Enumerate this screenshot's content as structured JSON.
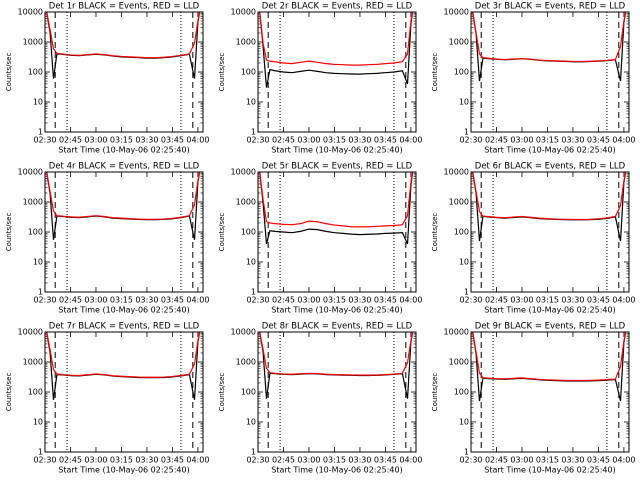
{
  "chart_data": [
    {
      "type": "line",
      "title": "Det 1r BLACK = Events, RED = LLD",
      "xlabel": "Start Time (10-May-06 02:25:40)",
      "ylabel": "Counts/sec",
      "log_y": true,
      "x": [
        "02:31",
        "02:33",
        "02:35",
        "02:37",
        "02:40",
        "02:45",
        "02:50",
        "02:55",
        "03:00",
        "03:05",
        "03:10",
        "03:15",
        "03:20",
        "03:25",
        "03:30",
        "03:35",
        "03:40",
        "03:45",
        "03:50",
        "03:55",
        "03:58",
        "04:00",
        "04:01"
      ],
      "xlim": [
        "02:30",
        "04:03"
      ],
      "xticks": [
        "02:30",
        "02:45",
        "03:00",
        "03:15",
        "03:30",
        "03:45",
        "04:00"
      ],
      "ylim": [
        1,
        10000
      ],
      "yticks": [
        1,
        10,
        100,
        1000,
        10000
      ],
      "dashed_lines": [
        "02:36",
        "03:57"
      ],
      "dotted_lines": [
        "02:43",
        "03:50"
      ],
      "series": [
        {
          "name": "BLACK",
          "color": "#000000",
          "values": [
            10000,
            2000,
            60,
            400,
            390,
            360,
            350,
            370,
            390,
            370,
            340,
            320,
            310,
            300,
            290,
            290,
            300,
            320,
            350,
            390,
            60,
            4500,
            10000
          ]
        },
        {
          "name": "RED",
          "color": "#ff0000",
          "values": [
            10000,
            2500,
            600,
            420,
            400,
            370,
            360,
            380,
            400,
            380,
            350,
            330,
            320,
            310,
            300,
            300,
            310,
            330,
            360,
            400,
            900,
            5000,
            10000
          ]
        }
      ]
    },
    {
      "type": "line",
      "title": "Det 2r BLACK = Events, RED = LLD",
      "xlabel": "Start Time (10-May-06 02:25:40)",
      "ylabel": "Counts/sec",
      "log_y": true,
      "x": [
        "02:31",
        "02:33",
        "02:35",
        "02:37",
        "02:40",
        "02:45",
        "02:50",
        "02:55",
        "03:00",
        "03:05",
        "03:10",
        "03:15",
        "03:20",
        "03:25",
        "03:30",
        "03:35",
        "03:40",
        "03:45",
        "03:50",
        "03:55",
        "03:58",
        "04:00",
        "04:01"
      ],
      "xlim": [
        "02:30",
        "04:03"
      ],
      "xticks": [
        "02:30",
        "02:45",
        "03:00",
        "03:15",
        "03:30",
        "03:45",
        "04:00"
      ],
      "ylim": [
        1,
        10000
      ],
      "yticks": [
        1,
        10,
        100,
        1000,
        10000
      ],
      "dashed_lines": [
        "02:36",
        "03:57"
      ],
      "dotted_lines": [
        "02:43",
        "03:50"
      ],
      "series": [
        {
          "name": "BLACK",
          "color": "#000000",
          "values": [
            10000,
            700,
            30,
            120,
            110,
            100,
            95,
            105,
            115,
            105,
            95,
            90,
            88,
            86,
            85,
            88,
            90,
            95,
            100,
            110,
            40,
            4000,
            10000
          ]
        },
        {
          "name": "RED",
          "color": "#ff0000",
          "values": [
            10000,
            900,
            250,
            230,
            220,
            200,
            190,
            210,
            230,
            210,
            190,
            180,
            175,
            170,
            170,
            175,
            180,
            190,
            200,
            220,
            400,
            5000,
            10000
          ]
        }
      ]
    },
    {
      "type": "line",
      "title": "Det 3r BLACK = Events, RED = LLD",
      "xlabel": "Start Time (10-May-06 02:25:40)",
      "ylabel": "Counts/sec",
      "log_y": true,
      "x": [
        "02:31",
        "02:33",
        "02:35",
        "02:37",
        "02:40",
        "02:45",
        "02:50",
        "02:55",
        "03:00",
        "03:05",
        "03:10",
        "03:15",
        "03:20",
        "03:25",
        "03:30",
        "03:35",
        "03:40",
        "03:45",
        "03:50",
        "03:55",
        "03:58",
        "04:00",
        "04:01"
      ],
      "xlim": [
        "02:30",
        "04:03"
      ],
      "xticks": [
        "02:30",
        "02:45",
        "03:00",
        "03:15",
        "03:30",
        "03:45",
        "04:00"
      ],
      "ylim": [
        1,
        10000
      ],
      "yticks": [
        1,
        10,
        100,
        1000,
        10000
      ],
      "dashed_lines": [
        "02:36",
        "03:57"
      ],
      "dotted_lines": [
        "02:43",
        "03:50"
      ],
      "series": [
        {
          "name": "BLACK",
          "color": "#000000",
          "values": [
            10000,
            1800,
            50,
            290,
            280,
            265,
            255,
            265,
            275,
            265,
            245,
            235,
            230,
            225,
            220,
            220,
            224,
            230,
            240,
            255,
            50,
            4500,
            10000
          ]
        },
        {
          "name": "RED",
          "color": "#ff0000",
          "values": [
            10000,
            2000,
            400,
            300,
            290,
            270,
            260,
            270,
            280,
            270,
            250,
            240,
            235,
            230,
            225,
            225,
            228,
            235,
            245,
            260,
            700,
            5000,
            10000
          ]
        }
      ]
    },
    {
      "type": "line",
      "title": "Det 4r BLACK = Events, RED = LLD",
      "xlabel": "Start Time (10-May-06 02:25:40)",
      "ylabel": "Counts/sec",
      "log_y": true,
      "x": [
        "02:31",
        "02:33",
        "02:35",
        "02:37",
        "02:40",
        "02:45",
        "02:50",
        "02:55",
        "03:00",
        "03:05",
        "03:10",
        "03:15",
        "03:20",
        "03:25",
        "03:30",
        "03:35",
        "03:40",
        "03:45",
        "03:50",
        "03:55",
        "03:58",
        "04:00",
        "04:01"
      ],
      "xlim": [
        "02:30",
        "04:03"
      ],
      "xticks": [
        "02:30",
        "02:45",
        "03:00",
        "03:15",
        "03:30",
        "03:45",
        "04:00"
      ],
      "ylim": [
        1,
        10000
      ],
      "yticks": [
        1,
        10,
        100,
        1000,
        10000
      ],
      "dashed_lines": [
        "02:36",
        "03:57"
      ],
      "dotted_lines": [
        "02:43",
        "03:50"
      ],
      "series": [
        {
          "name": "BLACK",
          "color": "#000000",
          "values": [
            10000,
            1900,
            55,
            340,
            330,
            310,
            300,
            320,
            340,
            320,
            290,
            280,
            270,
            262,
            258,
            258,
            262,
            275,
            300,
            340,
            55,
            4500,
            10000
          ]
        },
        {
          "name": "RED",
          "color": "#ff0000",
          "values": [
            10000,
            2200,
            500,
            350,
            340,
            320,
            310,
            330,
            350,
            330,
            300,
            290,
            280,
            270,
            265,
            265,
            270,
            285,
            310,
            350,
            800,
            5000,
            10000
          ]
        }
      ]
    },
    {
      "type": "line",
      "title": "Det 5r BLACK = Events, RED = LLD",
      "xlabel": "Start Time (10-May-06 02:25:40)",
      "ylabel": "Counts/sec",
      "log_y": true,
      "x": [
        "02:31",
        "02:33",
        "02:35",
        "02:37",
        "02:40",
        "02:45",
        "02:50",
        "02:55",
        "03:00",
        "03:05",
        "03:10",
        "03:15",
        "03:20",
        "03:25",
        "03:30",
        "03:35",
        "03:40",
        "03:45",
        "03:50",
        "03:55",
        "03:58",
        "04:00",
        "04:01"
      ],
      "xlim": [
        "02:30",
        "04:03"
      ],
      "xticks": [
        "02:30",
        "02:45",
        "03:00",
        "03:15",
        "03:30",
        "03:45",
        "04:00"
      ],
      "ylim": [
        1,
        10000
      ],
      "yticks": [
        1,
        10,
        100,
        1000,
        10000
      ],
      "dashed_lines": [
        "02:36",
        "03:57"
      ],
      "dotted_lines": [
        "02:43",
        "03:50"
      ],
      "series": [
        {
          "name": "BLACK",
          "color": "#000000",
          "values": [
            10000,
            900,
            40,
            110,
            105,
            100,
            95,
            105,
            125,
            120,
            105,
            95,
            90,
            85,
            82,
            84,
            86,
            90,
            92,
            95,
            40,
            3500,
            10000
          ]
        },
        {
          "name": "RED",
          "color": "#ff0000",
          "values": [
            10000,
            1200,
            220,
            200,
            190,
            180,
            175,
            190,
            230,
            220,
            190,
            170,
            160,
            150,
            148,
            150,
            155,
            160,
            165,
            175,
            350,
            4500,
            10000
          ]
        }
      ]
    },
    {
      "type": "line",
      "title": "Det 6r BLACK = Events, RED = LLD",
      "xlabel": "Start Time (10-May-06 02:25:40)",
      "ylabel": "Counts/sec",
      "log_y": true,
      "x": [
        "02:31",
        "02:33",
        "02:35",
        "02:37",
        "02:40",
        "02:45",
        "02:50",
        "02:55",
        "03:00",
        "03:05",
        "03:10",
        "03:15",
        "03:20",
        "03:25",
        "03:30",
        "03:35",
        "03:40",
        "03:45",
        "03:50",
        "03:55",
        "03:58",
        "04:00",
        "04:01"
      ],
      "xlim": [
        "02:30",
        "04:03"
      ],
      "xticks": [
        "02:30",
        "02:45",
        "03:00",
        "03:15",
        "03:30",
        "03:45",
        "04:00"
      ],
      "ylim": [
        1,
        10000
      ],
      "yticks": [
        1,
        10,
        100,
        1000,
        10000
      ],
      "dashed_lines": [
        "02:36",
        "03:57"
      ],
      "dotted_lines": [
        "02:43",
        "03:50"
      ],
      "series": [
        {
          "name": "BLACK",
          "color": "#000000",
          "values": [
            10000,
            1900,
            50,
            330,
            320,
            300,
            290,
            305,
            320,
            300,
            280,
            270,
            262,
            258,
            255,
            255,
            258,
            265,
            285,
            320,
            50,
            4500,
            10000
          ]
        },
        {
          "name": "RED",
          "color": "#ff0000",
          "values": [
            10000,
            2200,
            480,
            340,
            330,
            310,
            300,
            315,
            330,
            310,
            290,
            280,
            270,
            265,
            262,
            262,
            265,
            275,
            295,
            330,
            750,
            5000,
            10000
          ]
        }
      ]
    },
    {
      "type": "line",
      "title": "Det 7r BLACK = Events, RED = LLD",
      "xlabel": "Start Time (10-May-06 02:25:40)",
      "ylabel": "Counts/sec",
      "log_y": true,
      "x": [
        "02:31",
        "02:33",
        "02:35",
        "02:37",
        "02:40",
        "02:45",
        "02:50",
        "02:55",
        "03:00",
        "03:05",
        "03:10",
        "03:15",
        "03:20",
        "03:25",
        "03:30",
        "03:35",
        "03:40",
        "03:45",
        "03:50",
        "03:55",
        "03:58",
        "04:00",
        "04:01"
      ],
      "xlim": [
        "02:30",
        "04:03"
      ],
      "xticks": [
        "02:30",
        "02:45",
        "03:00",
        "03:15",
        "03:30",
        "03:45",
        "04:00"
      ],
      "ylim": [
        1,
        10000
      ],
      "yticks": [
        1,
        10,
        100,
        1000,
        10000
      ],
      "dashed_lines": [
        "02:36",
        "03:57"
      ],
      "dotted_lines": [
        "02:43",
        "03:50"
      ],
      "series": [
        {
          "name": "BLACK",
          "color": "#000000",
          "values": [
            10000,
            2000,
            55,
            380,
            370,
            350,
            345,
            365,
            390,
            370,
            340,
            325,
            315,
            305,
            300,
            300,
            305,
            320,
            345,
            380,
            55,
            4500,
            10000
          ]
        },
        {
          "name": "RED",
          "color": "#ff0000",
          "values": [
            10000,
            2500,
            560,
            400,
            380,
            360,
            355,
            375,
            400,
            380,
            350,
            335,
            325,
            315,
            310,
            310,
            315,
            330,
            355,
            390,
            850,
            5000,
            10000
          ]
        }
      ]
    },
    {
      "type": "line",
      "title": "Det 8r BLACK = Events, RED = LLD",
      "xlabel": "Start Time (10-May-06 02:25:40)",
      "ylabel": "Counts/sec",
      "log_y": true,
      "x": [
        "02:31",
        "02:33",
        "02:35",
        "02:37",
        "02:40",
        "02:45",
        "02:50",
        "02:55",
        "03:00",
        "03:05",
        "03:10",
        "03:15",
        "03:20",
        "03:25",
        "03:30",
        "03:35",
        "03:40",
        "03:45",
        "03:50",
        "03:55",
        "03:58",
        "04:00",
        "04:01"
      ],
      "xlim": [
        "02:30",
        "04:03"
      ],
      "xticks": [
        "02:30",
        "02:45",
        "03:00",
        "03:15",
        "03:30",
        "03:45",
        "04:00"
      ],
      "ylim": [
        1,
        10000
      ],
      "yticks": [
        1,
        10,
        100,
        1000,
        10000
      ],
      "dashed_lines": [
        "02:36",
        "03:57"
      ],
      "dotted_lines": [
        "02:43",
        "03:50"
      ],
      "series": [
        {
          "name": "BLACK",
          "color": "#000000",
          "values": [
            10000,
            2100,
            60,
            420,
            410,
            390,
            380,
            395,
            410,
            400,
            380,
            370,
            365,
            360,
            355,
            355,
            360,
            370,
            385,
            410,
            60,
            4600,
            10000
          ]
        },
        {
          "name": "RED",
          "color": "#ff0000",
          "values": [
            10000,
            2600,
            620,
            440,
            420,
            400,
            390,
            405,
            420,
            410,
            390,
            380,
            375,
            370,
            365,
            365,
            370,
            380,
            395,
            420,
            950,
            5000,
            10000
          ]
        }
      ]
    },
    {
      "type": "line",
      "title": "Det 9r BLACK = Events, RED = LLD",
      "xlabel": "Start Time (10-May-06 02:25:40)",
      "ylabel": "Counts/sec",
      "log_y": true,
      "x": [
        "02:31",
        "02:33",
        "02:35",
        "02:37",
        "02:40",
        "02:45",
        "02:50",
        "02:55",
        "03:00",
        "03:05",
        "03:10",
        "03:15",
        "03:20",
        "03:25",
        "03:30",
        "03:35",
        "03:40",
        "03:45",
        "03:50",
        "03:55",
        "03:58",
        "04:00",
        "04:01"
      ],
      "xlim": [
        "02:30",
        "04:03"
      ],
      "xticks": [
        "02:30",
        "02:45",
        "03:00",
        "03:15",
        "03:30",
        "03:45",
        "04:00"
      ],
      "ylim": [
        1,
        10000
      ],
      "yticks": [
        1,
        10,
        100,
        1000,
        10000
      ],
      "dashed_lines": [
        "02:36",
        "03:57"
      ],
      "dotted_lines": [
        "02:43",
        "03:50"
      ],
      "series": [
        {
          "name": "BLACK",
          "color": "#000000",
          "values": [
            10000,
            1800,
            50,
            290,
            280,
            270,
            265,
            275,
            285,
            270,
            255,
            245,
            240,
            235,
            232,
            232,
            235,
            240,
            248,
            260,
            50,
            4400,
            10000
          ]
        },
        {
          "name": "RED",
          "color": "#ff0000",
          "values": [
            10000,
            2100,
            420,
            300,
            290,
            280,
            275,
            285,
            295,
            280,
            265,
            255,
            250,
            245,
            242,
            242,
            245,
            250,
            258,
            270,
            700,
            5000,
            10000
          ]
        }
      ]
    }
  ]
}
